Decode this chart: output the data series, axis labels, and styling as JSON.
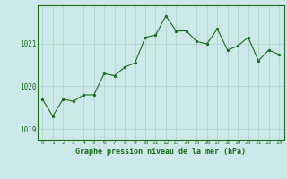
{
  "x": [
    0,
    1,
    2,
    3,
    4,
    5,
    6,
    7,
    8,
    9,
    10,
    11,
    12,
    13,
    14,
    15,
    16,
    17,
    18,
    19,
    20,
    21,
    22,
    23
  ],
  "y": [
    1019.7,
    1019.3,
    1019.7,
    1019.65,
    1019.8,
    1019.8,
    1020.3,
    1020.25,
    1020.45,
    1020.55,
    1021.15,
    1021.2,
    1021.65,
    1021.3,
    1021.3,
    1021.05,
    1021.0,
    1021.35,
    1020.85,
    1020.95,
    1021.15,
    1020.6,
    1020.85,
    1020.75
  ],
  "line_color": "#1a6b1a",
  "marker_color": "#1a6b1a",
  "bg_color": "#cce8e8",
  "grid_color": "#aacfcf",
  "spine_color": "#1a6b1a",
  "title": "Graphe pression niveau de la mer (hPa)",
  "yticks": [
    1019,
    1020,
    1021
  ],
  "ylim": [
    1018.75,
    1021.9
  ],
  "xlim": [
    -0.5,
    23.5
  ]
}
